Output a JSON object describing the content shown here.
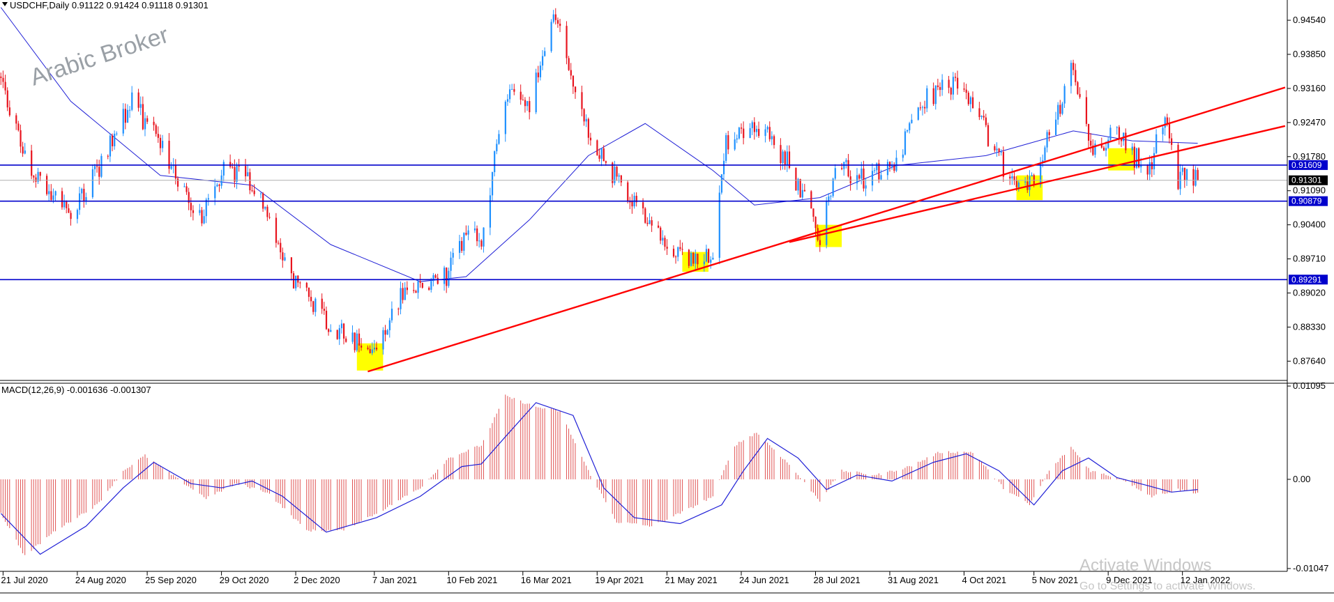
{
  "header": {
    "symbol_line": "USDCHF,Daily  0.91122 0.91424 0.91118 0.91301"
  },
  "watermark": "Arabic Broker",
  "macd_header": "MACD(12,26,9) -0.001636 -0.001307",
  "activate": {
    "title": "Activate Windows",
    "subtitle": "Go to Settings to activate Windows."
  },
  "colors": {
    "bull": "#1e90ff",
    "bear": "#e8141e",
    "ma": "#1f1fd6",
    "level": "#0000cc",
    "trend": "#ff0000",
    "highlight": "#ffff00",
    "histogram": "#e05252",
    "signal": "#1f1fd6"
  },
  "chart_data": [
    {
      "type": "candlestick",
      "symbol": "USDCHF",
      "timeframe": "Daily",
      "ylim": [
        0.8725,
        0.9495
      ],
      "y_ticks": [
        "0.94540",
        "0.93850",
        "0.93160",
        "0.92470",
        "0.91780",
        "0.91090",
        "0.90400",
        "0.89710",
        "0.89020",
        "0.88330",
        "0.87640"
      ],
      "x_ticks": [
        "21 Jul 2020",
        "24 Aug 2020",
        "25 Sep 2020",
        "29 Oct 2020",
        "2 Dec 2020",
        "7 Jan 2021",
        "10 Feb 2021",
        "16 Mar 2021",
        "19 Apr 2021",
        "21 May 2021",
        "24 Jun 2021",
        "28 Jul 2021",
        "31 Aug 2021",
        "4 Oct 2021",
        "5 Nov 2021",
        "9 Dec 2021",
        "12 Jan 2022"
      ],
      "price_path": [
        {
          "date": "2020-07-20",
          "close": 0.934
        },
        {
          "date": "2020-08-03",
          "close": 0.914
        },
        {
          "date": "2020-08-21",
          "close": 0.906
        },
        {
          "date": "2020-09-02",
          "close": 0.915
        },
        {
          "date": "2020-09-18",
          "close": 0.929
        },
        {
          "date": "2020-10-01",
          "close": 0.92
        },
        {
          "date": "2020-10-20",
          "close": 0.905
        },
        {
          "date": "2020-10-30",
          "close": 0.916
        },
        {
          "date": "2020-11-12",
          "close": 0.913
        },
        {
          "date": "2020-12-02",
          "close": 0.892
        },
        {
          "date": "2020-12-18",
          "close": 0.884
        },
        {
          "date": "2021-01-06",
          "close": 0.878
        },
        {
          "date": "2021-01-20",
          "close": 0.89
        },
        {
          "date": "2021-02-10",
          "close": 0.894
        },
        {
          "date": "2021-02-18",
          "close": 0.903
        },
        {
          "date": "2021-02-25",
          "close": 0.9
        },
        {
          "date": "2021-03-08",
          "close": 0.931
        },
        {
          "date": "2021-03-19",
          "close": 0.929
        },
        {
          "date": "2021-03-31",
          "close": 0.946
        },
        {
          "date": "2021-04-15",
          "close": 0.922
        },
        {
          "date": "2021-04-28",
          "close": 0.913
        },
        {
          "date": "2021-05-11",
          "close": 0.905
        },
        {
          "date": "2021-05-24",
          "close": 0.898
        },
        {
          "date": "2021-06-02",
          "close": 0.896
        },
        {
          "date": "2021-06-11",
          "close": 0.899
        },
        {
          "date": "2021-06-17",
          "close": 0.921
        },
        {
          "date": "2021-06-30",
          "close": 0.925
        },
        {
          "date": "2021-07-15",
          "close": 0.917
        },
        {
          "date": "2021-07-30",
          "close": 0.902
        },
        {
          "date": "2021-08-06",
          "close": 0.916
        },
        {
          "date": "2021-08-20",
          "close": 0.913
        },
        {
          "date": "2021-09-03",
          "close": 0.917
        },
        {
          "date": "2021-09-17",
          "close": 0.93
        },
        {
          "date": "2021-09-30",
          "close": 0.933
        },
        {
          "date": "2021-10-14",
          "close": 0.923
        },
        {
          "date": "2021-10-26",
          "close": 0.912
        },
        {
          "date": "2021-11-03",
          "close": 0.912
        },
        {
          "date": "2021-11-12",
          "close": 0.922
        },
        {
          "date": "2021-11-23",
          "close": 0.936
        },
        {
          "date": "2021-12-02",
          "close": 0.919
        },
        {
          "date": "2021-12-13",
          "close": 0.923
        },
        {
          "date": "2021-12-20",
          "close": 0.918
        },
        {
          "date": "2021-12-28",
          "close": 0.916
        },
        {
          "date": "2022-01-04",
          "close": 0.926
        },
        {
          "date": "2022-01-10",
          "close": 0.913
        },
        {
          "date": "2022-01-14",
          "close": 0.914
        },
        {
          "date": "2022-01-19",
          "close": 0.913
        }
      ],
      "ma_path": [
        {
          "date": "2020-07-20",
          "value": 0.948
        },
        {
          "date": "2020-08-21",
          "value": 0.929
        },
        {
          "date": "2020-10-01",
          "value": 0.914
        },
        {
          "date": "2020-11-12",
          "value": 0.912
        },
        {
          "date": "2020-12-18",
          "value": 0.9
        },
        {
          "date": "2021-01-28",
          "value": 0.8925
        },
        {
          "date": "2021-02-18",
          "value": 0.8935
        },
        {
          "date": "2021-03-19",
          "value": 0.905
        },
        {
          "date": "2021-04-15",
          "value": 0.918
        },
        {
          "date": "2021-05-11",
          "value": 0.9245
        },
        {
          "date": "2021-06-11",
          "value": 0.915
        },
        {
          "date": "2021-06-30",
          "value": 0.908
        },
        {
          "date": "2021-07-30",
          "value": 0.9095
        },
        {
          "date": "2021-09-03",
          "value": 0.916
        },
        {
          "date": "2021-10-14",
          "value": 0.918
        },
        {
          "date": "2021-11-03",
          "value": 0.9205
        },
        {
          "date": "2021-11-23",
          "value": 0.923
        },
        {
          "date": "2021-12-20",
          "value": 0.921
        },
        {
          "date": "2022-01-19",
          "value": 0.9205
        }
      ],
      "horizontal_levels": [
        {
          "value": 0.91609,
          "label": "0.91609"
        },
        {
          "value": 0.90879,
          "label": "0.90879"
        },
        {
          "value": 0.89291,
          "label": "0.89291"
        }
      ],
      "current_price": {
        "value": 0.91301,
        "label": "0.91301"
      },
      "trendlines": [
        {
          "from": {
            "date": "2021-01-04",
            "value": 0.8743
          },
          "to": {
            "date": "2022-02-28",
            "value": 0.9318
          }
        },
        {
          "from": {
            "date": "2021-07-16",
            "value": 0.9005
          },
          "to": {
            "date": "2022-02-28",
            "value": 0.924
          }
        }
      ],
      "highlights": [
        {
          "from": "2020-12-30",
          "to": "2021-01-11",
          "low": 0.8745,
          "high": 0.88
        },
        {
          "from": "2021-05-28",
          "to": "2021-06-09",
          "low": 0.8945,
          "high": 0.8985
        },
        {
          "from": "2021-07-28",
          "to": "2021-08-09",
          "low": 0.8995,
          "high": 0.904
        },
        {
          "from": "2021-10-28",
          "to": "2021-11-09",
          "low": 0.909,
          "high": 0.914
        },
        {
          "from": "2021-12-09",
          "to": "2021-12-21",
          "low": 0.915,
          "high": 0.9195
        }
      ]
    },
    {
      "type": "macd",
      "params": "12,26,9",
      "ylim": [
        -0.0108,
        0.0112
      ],
      "y_ticks": [
        "0.01095",
        "0.00",
        "-0.01047"
      ],
      "histogram_path": [
        {
          "date": "2020-07-20",
          "value": -0.004
        },
        {
          "date": "2020-07-31",
          "value": -0.009
        },
        {
          "date": "2020-08-14",
          "value": -0.006
        },
        {
          "date": "2020-09-02",
          "value": -0.003
        },
        {
          "date": "2020-09-14",
          "value": 0.001
        },
        {
          "date": "2020-09-24",
          "value": 0.0028
        },
        {
          "date": "2020-10-08",
          "value": 0.0002
        },
        {
          "date": "2020-10-22",
          "value": -0.0022
        },
        {
          "date": "2020-11-05",
          "value": -0.0005
        },
        {
          "date": "2020-11-19",
          "value": -0.0015
        },
        {
          "date": "2020-12-07",
          "value": -0.006
        },
        {
          "date": "2020-12-23",
          "value": -0.006
        },
        {
          "date": "2021-01-08",
          "value": -0.004
        },
        {
          "date": "2021-01-28",
          "value": -0.001
        },
        {
          "date": "2021-02-10",
          "value": 0.0025
        },
        {
          "date": "2021-02-25",
          "value": 0.004
        },
        {
          "date": "2021-03-08",
          "value": 0.0098
        },
        {
          "date": "2021-03-22",
          "value": 0.0085
        },
        {
          "date": "2021-04-02",
          "value": 0.008
        },
        {
          "date": "2021-04-15",
          "value": 0.001
        },
        {
          "date": "2021-04-28",
          "value": -0.005
        },
        {
          "date": "2021-05-14",
          "value": -0.0055
        },
        {
          "date": "2021-05-31",
          "value": -0.0035
        },
        {
          "date": "2021-06-11",
          "value": -0.002
        },
        {
          "date": "2021-06-21",
          "value": 0.004
        },
        {
          "date": "2021-07-01",
          "value": 0.0055
        },
        {
          "date": "2021-07-15",
          "value": 0.002
        },
        {
          "date": "2021-07-30",
          "value": -0.0025
        },
        {
          "date": "2021-08-09",
          "value": 0.001
        },
        {
          "date": "2021-08-25",
          "value": 0.0005
        },
        {
          "date": "2021-09-09",
          "value": 0.0015
        },
        {
          "date": "2021-09-23",
          "value": 0.0032
        },
        {
          "date": "2021-10-08",
          "value": 0.0032
        },
        {
          "date": "2021-10-22",
          "value": -0.001
        },
        {
          "date": "2021-11-03",
          "value": -0.003
        },
        {
          "date": "2021-11-12",
          "value": 0.001
        },
        {
          "date": "2021-11-22",
          "value": 0.0038
        },
        {
          "date": "2021-12-01",
          "value": 0.001
        },
        {
          "date": "2021-12-15",
          "value": 0.0001
        },
        {
          "date": "2021-12-29",
          "value": -0.002
        },
        {
          "date": "2022-01-10",
          "value": -0.0012
        },
        {
          "date": "2022-01-19",
          "value": -0.0016
        }
      ],
      "signal_path": [
        {
          "date": "2020-07-20",
          "value": -0.004
        },
        {
          "date": "2020-08-07",
          "value": -0.0088
        },
        {
          "date": "2020-08-28",
          "value": -0.0055
        },
        {
          "date": "2020-09-14",
          "value": -0.001
        },
        {
          "date": "2020-09-28",
          "value": 0.002
        },
        {
          "date": "2020-10-15",
          "value": -0.0005
        },
        {
          "date": "2020-10-29",
          "value": -0.001
        },
        {
          "date": "2020-11-12",
          "value": -0.0002
        },
        {
          "date": "2020-11-26",
          "value": -0.002
        },
        {
          "date": "2020-12-16",
          "value": -0.0062
        },
        {
          "date": "2021-01-08",
          "value": -0.0045
        },
        {
          "date": "2021-01-28",
          "value": -0.002
        },
        {
          "date": "2021-02-16",
          "value": 0.0015
        },
        {
          "date": "2021-02-25",
          "value": 0.0018
        },
        {
          "date": "2021-03-08",
          "value": 0.005
        },
        {
          "date": "2021-03-22",
          "value": 0.009
        },
        {
          "date": "2021-04-08",
          "value": 0.0075
        },
        {
          "date": "2021-04-22",
          "value": -0.001
        },
        {
          "date": "2021-05-06",
          "value": -0.0045
        },
        {
          "date": "2021-05-27",
          "value": -0.0052
        },
        {
          "date": "2021-06-15",
          "value": -0.003
        },
        {
          "date": "2021-06-25",
          "value": 0.001
        },
        {
          "date": "2021-07-06",
          "value": 0.0048
        },
        {
          "date": "2021-07-20",
          "value": 0.0025
        },
        {
          "date": "2021-08-02",
          "value": -0.0012
        },
        {
          "date": "2021-08-16",
          "value": 0.0005
        },
        {
          "date": "2021-09-01",
          "value": -0.0002
        },
        {
          "date": "2021-09-20",
          "value": 0.002
        },
        {
          "date": "2021-10-05",
          "value": 0.003
        },
        {
          "date": "2021-10-20",
          "value": 0.001
        },
        {
          "date": "2021-11-05",
          "value": -0.003
        },
        {
          "date": "2021-11-18",
          "value": 0.001
        },
        {
          "date": "2021-11-30",
          "value": 0.0025
        },
        {
          "date": "2021-12-13",
          "value": 0.0002
        },
        {
          "date": "2021-12-28",
          "value": -0.0008
        },
        {
          "date": "2022-01-07",
          "value": -0.0015
        },
        {
          "date": "2022-01-19",
          "value": -0.0012
        }
      ]
    }
  ]
}
